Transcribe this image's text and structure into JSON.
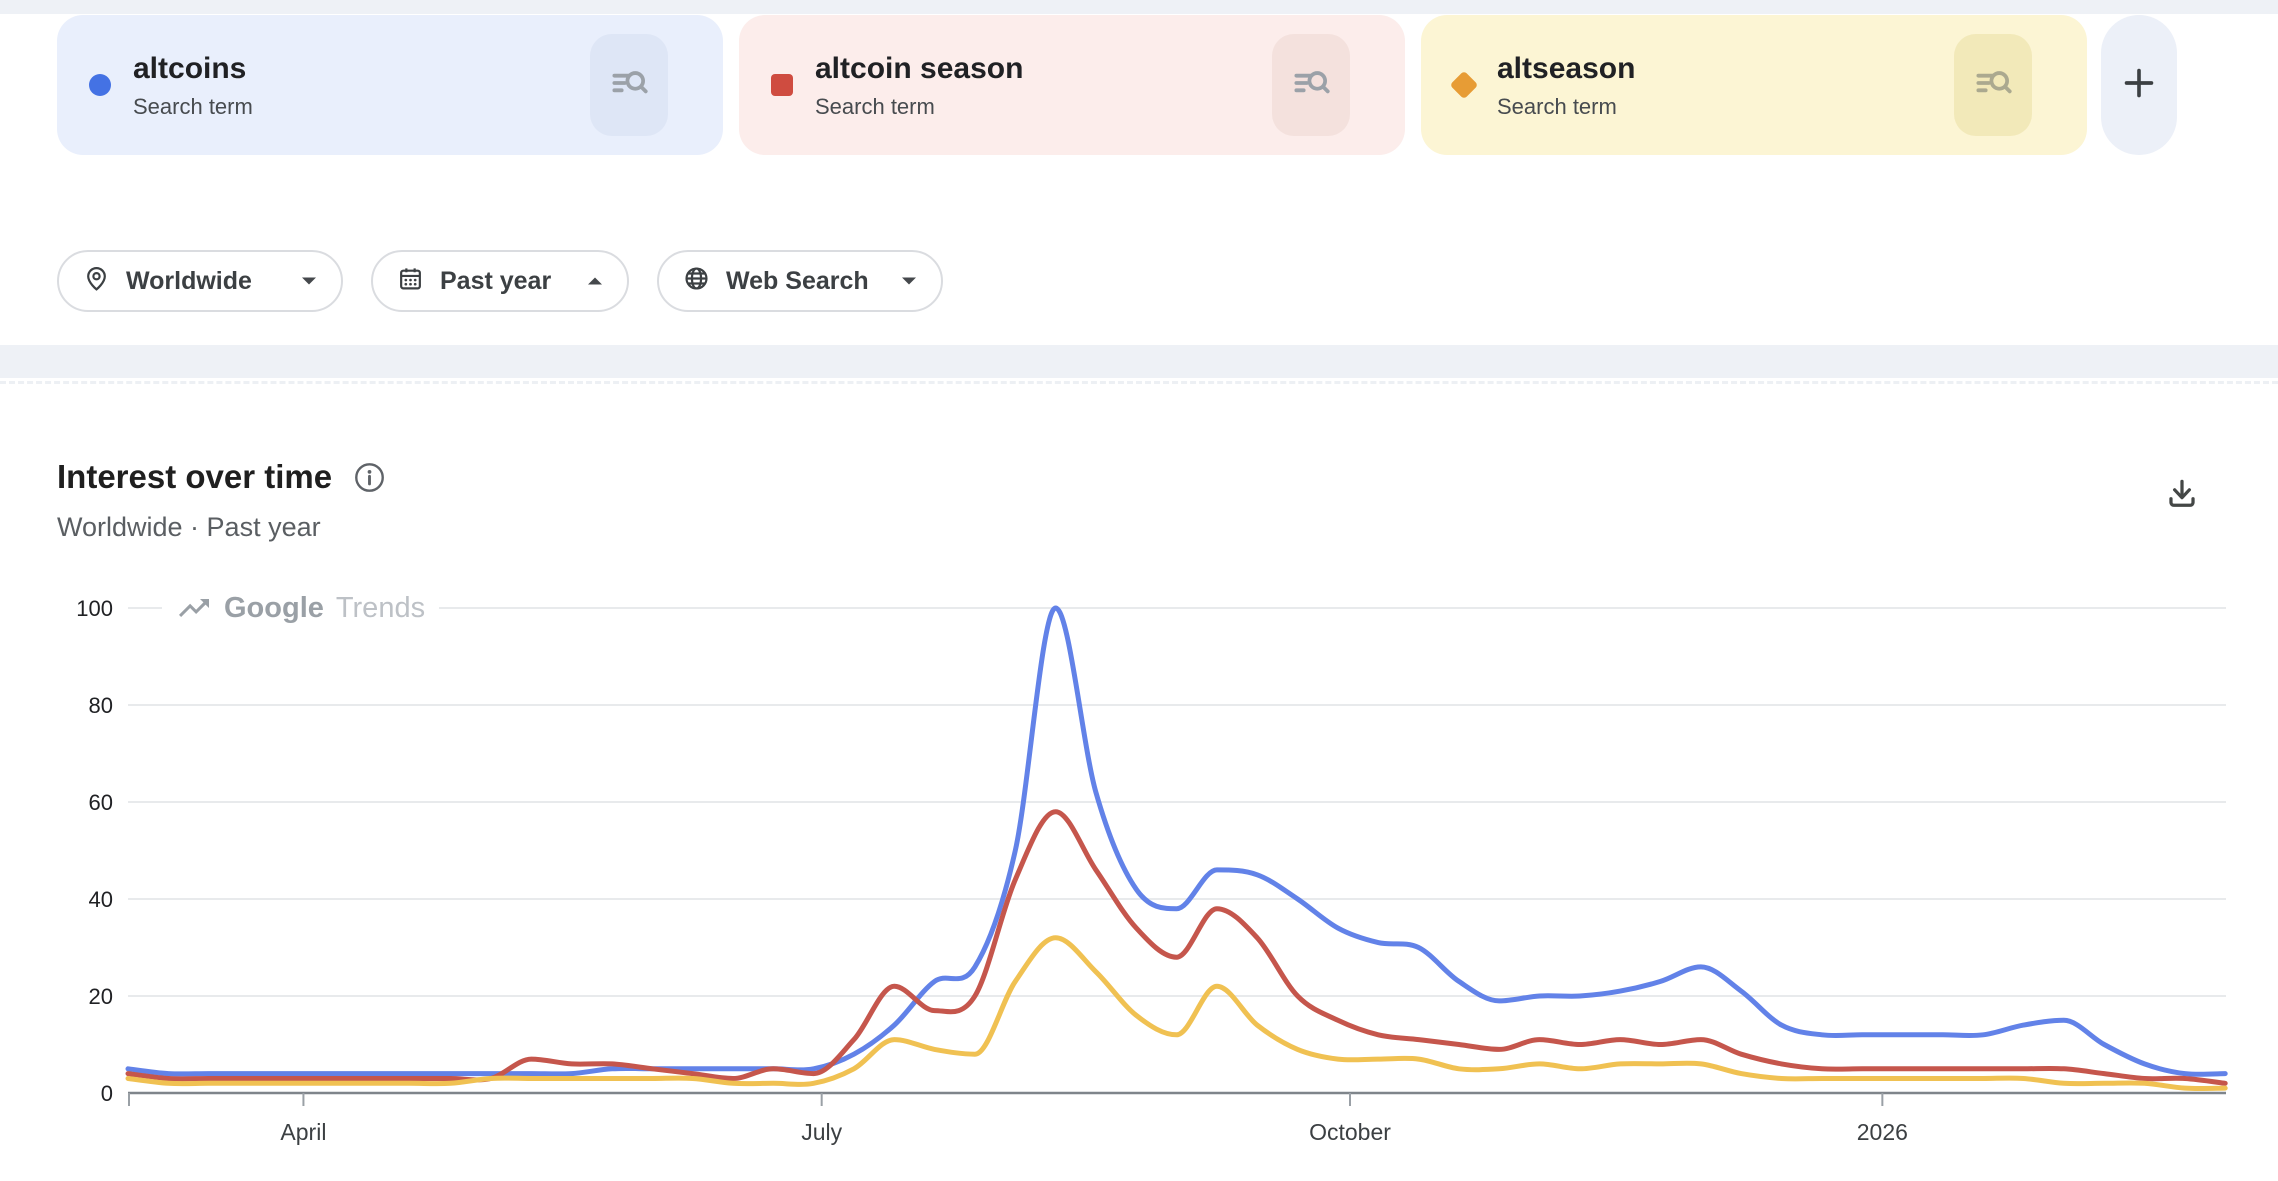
{
  "terms": [
    {
      "label": "altcoins",
      "sublabel": "Search term",
      "marker": "circle",
      "marker_color": "#4472E4",
      "card_bg": "#E9EFFC",
      "icon_bg": "#DEE6F6",
      "icon": "manage-search-icon"
    },
    {
      "label": "altcoin season",
      "sublabel": "Search term",
      "marker": "square",
      "marker_color": "#CF4C40",
      "card_bg": "#FCEDEB",
      "icon_bg": "#F4E1DD",
      "icon": "manage-search-icon"
    },
    {
      "label": "altseason",
      "sublabel": "Search term",
      "marker": "diamond",
      "marker_color": "#E79C35",
      "card_bg": "#FCF5D4",
      "icon_bg": "#F2E9B9",
      "icon": "manage-search-icon"
    }
  ],
  "add_term": {
    "label": "+",
    "icon": "plus-icon"
  },
  "filters": [
    {
      "label": "Worldwide",
      "icon": "location-pin-icon",
      "caret": "down"
    },
    {
      "label": "Past year",
      "icon": "calendar-icon",
      "caret": "up"
    },
    {
      "label": "Web Search",
      "icon": "globe-icon",
      "caret": "down"
    }
  ],
  "section": {
    "title": "Interest over time",
    "subtitle": "Worldwide · Past year",
    "info_icon": "info-icon",
    "download_icon": "download-icon"
  },
  "watermark": {
    "icon": "trending-up-icon",
    "text_primary": "Google",
    "text_secondary": "Trends"
  },
  "chart_data": {
    "type": "line",
    "title": "Interest over time",
    "subtitle": "Worldwide · Past year",
    "x_axis": {
      "unit": "week",
      "range_label": "Past year",
      "tick_labels": [
        "April",
        "July",
        "October",
        "2026"
      ],
      "tick_week_positions": [
        4.35,
        17.2,
        30.3,
        43.5
      ]
    },
    "y_axis": {
      "ticks": [
        0,
        20,
        40,
        60,
        80,
        100
      ],
      "range": [
        0,
        100
      ]
    },
    "grid": true,
    "legend": "none",
    "series": [
      {
        "name": "altcoins",
        "color": "#6282E8",
        "values": [
          5,
          4,
          4,
          4,
          4,
          4,
          4,
          4,
          4,
          4,
          4,
          4,
          5,
          5,
          5,
          5,
          5,
          5,
          8,
          14,
          23,
          26,
          50,
          100,
          62,
          42,
          38,
          46,
          45,
          40,
          34,
          31,
          30,
          23,
          19,
          20,
          20,
          21,
          23,
          26,
          21,
          14,
          12,
          12,
          12,
          12,
          12,
          14,
          15,
          10,
          6,
          4,
          4
        ]
      },
      {
        "name": "altcoin season",
        "color": "#C5564C",
        "values": [
          4,
          3,
          3,
          3,
          3,
          3,
          3,
          3,
          3,
          3,
          7,
          6,
          6,
          5,
          4,
          3,
          5,
          4,
          11,
          22,
          17,
          20,
          44,
          58,
          46,
          34,
          28,
          38,
          32,
          20,
          15,
          12,
          11,
          10,
          9,
          11,
          10,
          11,
          10,
          11,
          8,
          6,
          5,
          5,
          5,
          5,
          5,
          5,
          5,
          4,
          3,
          3,
          2
        ]
      },
      {
        "name": "altseason",
        "color": "#F0C152",
        "values": [
          3,
          2,
          2,
          2,
          2,
          2,
          2,
          2,
          2,
          3,
          3,
          3,
          3,
          3,
          3,
          2,
          2,
          2,
          5,
          11,
          9,
          8,
          23,
          32,
          25,
          16,
          12,
          22,
          14,
          9,
          7,
          7,
          7,
          5,
          5,
          6,
          5,
          6,
          6,
          6,
          4,
          3,
          3,
          3,
          3,
          3,
          3,
          3,
          2,
          2,
          2,
          1,
          1
        ]
      }
    ]
  }
}
